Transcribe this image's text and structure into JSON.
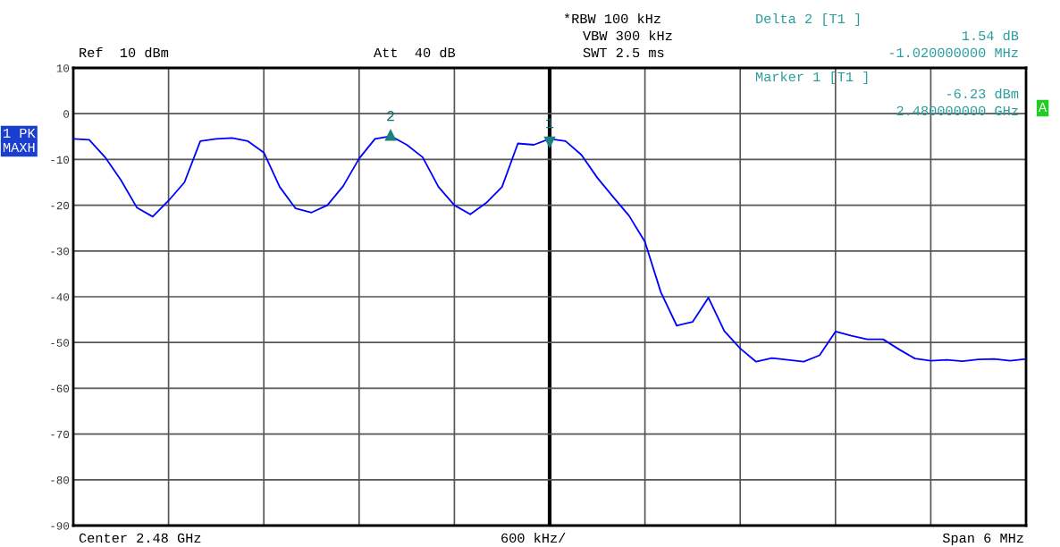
{
  "chart_data": {
    "type": "line",
    "categories": [
      null,
      null,
      null,
      null,
      null,
      null,
      null,
      null,
      null,
      null,
      null,
      null,
      null,
      null,
      null,
      null,
      null,
      null,
      null,
      null,
      null,
      null,
      null,
      null,
      null,
      null,
      null,
      null,
      null,
      null,
      null,
      null,
      null,
      null,
      null,
      null,
      null,
      null,
      null,
      null,
      null,
      null,
      null,
      null,
      null,
      null,
      null,
      null,
      null,
      null,
      null,
      null,
      null,
      null,
      null,
      null,
      null,
      null,
      null,
      null,
      null
    ],
    "series": [
      {
        "color": "#0000ff",
        "values": [
          -5.5,
          -5.7,
          -9.5,
          -14.5,
          -20.5,
          -22.5,
          -19,
          -15,
          -6,
          -5.5,
          -5.3,
          -6,
          -8.5,
          -16,
          -20.7,
          -21.6,
          -20,
          -15.8,
          -9.8,
          -5.5,
          -4.9,
          -6.8,
          -9.5,
          -16,
          -20,
          -22,
          -19.5,
          -16,
          -6.5,
          -6.8,
          -5.5,
          -6,
          -9,
          -14,
          -18.2,
          -22.3,
          -28,
          -39,
          -46.3,
          -45.5,
          -40.2,
          -47.5,
          -51.3,
          -54.2,
          -53.4,
          -53.8,
          -54.2,
          -52.8,
          -47.6,
          -48.5,
          -49.3,
          -49.3,
          -51.5,
          -53.5,
          -54.0,
          -53.8,
          -54.1,
          -53.7,
          -53.6,
          -54.0,
          -53.6
        ]
      }
    ],
    "ylim": [
      -90,
      10
    ],
    "yticks": [
      10,
      0,
      -10,
      -20,
      -30,
      -40,
      -50,
      -60,
      -70,
      -80,
      -90
    ],
    "tick_labels": "y",
    "grid": true,
    "line_style": "solid",
    "annotations": [
      "Ref  10 dBm",
      "Att  40 dB",
      "*RBW 100 kHz",
      "VBW 300 kHz",
      "SWT 2.5 ms",
      "Delta 2 [T1 ]",
      "1.54 dB",
      "-1.020000000 MHz",
      "Marker 1 [T1 ]",
      "-6.23 dBm",
      "2.480000000 GHz",
      "1 PK",
      "MAXH",
      "A",
      "Center 2.48 GHz",
      "600 kHz/",
      "Span 6 MHz",
      {
        "text": "2",
        "y": -4.69
      },
      {
        "text": "1",
        "y": -6.23
      }
    ]
  }
}
